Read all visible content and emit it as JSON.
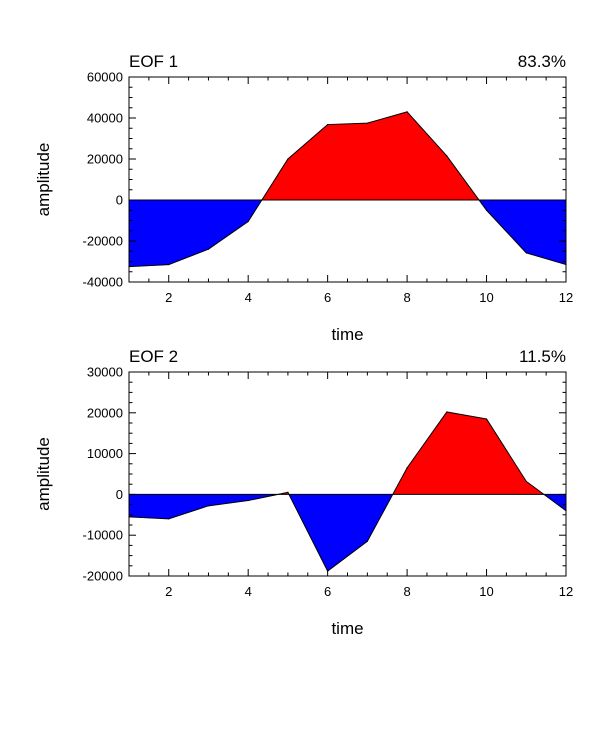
{
  "chart_data": [
    {
      "type": "area",
      "title": "EOF 1",
      "variance_label": "83.3%",
      "xlabel": "time",
      "ylabel": "amplitude",
      "xlim": [
        1,
        12
      ],
      "ylim": [
        -40000,
        60000
      ],
      "xticks": [
        2,
        4,
        6,
        8,
        10,
        12
      ],
      "xtick_labels": [
        "2",
        "4",
        "6",
        "8",
        "10",
        "12"
      ],
      "yticks": [
        -40000,
        -20000,
        0,
        20000,
        40000,
        60000
      ],
      "ytick_labels": [
        "-40000",
        "-20000",
        "0",
        "20000",
        "40000",
        "60000"
      ],
      "x": [
        1,
        2,
        3,
        4,
        5,
        6,
        7,
        8,
        9,
        10,
        11,
        12
      ],
      "values": [
        -32500,
        -31500,
        -24000,
        -10500,
        20000,
        36800,
        37500,
        43000,
        21500,
        -5000,
        -25800,
        -31500
      ],
      "positive_color": "#ff0000",
      "negative_color": "#0000ff",
      "grid": false
    },
    {
      "type": "area",
      "title": "EOF 2",
      "variance_label": "11.5%",
      "xlabel": "time",
      "ylabel": "amplitude",
      "xlim": [
        1,
        12
      ],
      "ylim": [
        -20000,
        30000
      ],
      "xticks": [
        2,
        4,
        6,
        8,
        10,
        12
      ],
      "xtick_labels": [
        "2",
        "4",
        "6",
        "8",
        "10",
        "12"
      ],
      "yticks": [
        -20000,
        -10000,
        0,
        10000,
        20000,
        30000
      ],
      "ytick_labels": [
        "-20000",
        "-10000",
        "0",
        "10000",
        "20000",
        "30000"
      ],
      "x": [
        1,
        2,
        3,
        4,
        5,
        6,
        7,
        8,
        9,
        10,
        11,
        12
      ],
      "values": [
        -5500,
        -6000,
        -2800,
        -1500,
        500,
        -18800,
        -11500,
        6500,
        20200,
        18500,
        3200,
        -4000
      ],
      "positive_color": "#ff0000",
      "negative_color": "#0000ff",
      "grid": false
    }
  ]
}
